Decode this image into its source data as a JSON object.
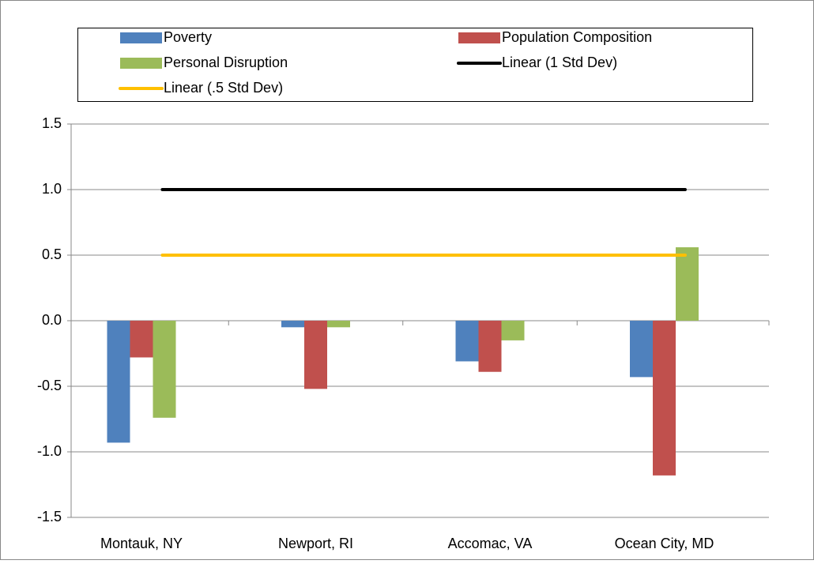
{
  "chart_data": {
    "type": "bar",
    "categories": [
      "Montauk, NY",
      "Newport, RI",
      "Accomac, VA",
      "Ocean City, MD"
    ],
    "series": [
      {
        "name": "Poverty",
        "color": "#4f81bd",
        "type": "bar",
        "values": [
          -0.93,
          -0.05,
          -0.31,
          -0.43
        ]
      },
      {
        "name": "Population Composition",
        "color": "#c0504d",
        "type": "bar",
        "values": [
          -0.28,
          -0.52,
          -0.39,
          -1.18
        ]
      },
      {
        "name": "Personal Disruption",
        "color": "#9bbb59",
        "type": "bar",
        "values": [
          -0.74,
          -0.05,
          -0.15,
          0.56
        ]
      },
      {
        "name": "Linear (1 Std Dev)",
        "color": "#000000",
        "type": "line",
        "values": [
          1,
          1,
          1,
          1
        ]
      },
      {
        "name": "Linear (.5 Std Dev)",
        "color": "#ffc000",
        "type": "line",
        "values": [
          0.5,
          0.5,
          0.5,
          0.5
        ]
      }
    ],
    "ylim": [
      -1.5,
      1.5
    ],
    "yticks": [
      -1.5,
      {
        "value": -1,
        "label": "-1.0"
      },
      -0.5,
      {
        "value": 0,
        "label": "0.0"
      },
      0.5,
      {
        "value": 1,
        "label": "1.0"
      },
      1.5
    ],
    "grid": true,
    "legend": "top"
  }
}
